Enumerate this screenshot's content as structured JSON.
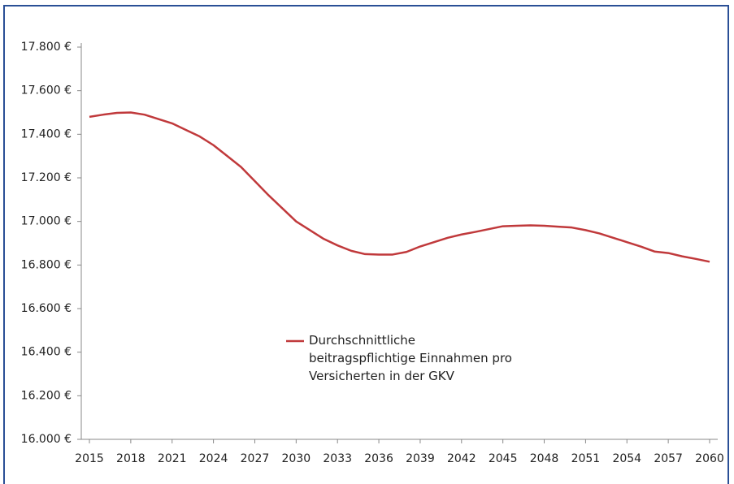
{
  "chart_data": {
    "type": "line",
    "x": [
      2015,
      2016,
      2017,
      2018,
      2019,
      2020,
      2021,
      2022,
      2023,
      2024,
      2025,
      2026,
      2027,
      2028,
      2029,
      2030,
      2031,
      2032,
      2033,
      2034,
      2035,
      2036,
      2037,
      2038,
      2039,
      2040,
      2041,
      2042,
      2043,
      2044,
      2045,
      2046,
      2047,
      2048,
      2049,
      2050,
      2051,
      2052,
      2053,
      2054,
      2055,
      2056,
      2057,
      2058,
      2059,
      2060
    ],
    "series": [
      {
        "name": "Durchschnittliche beitragspflichtige Einnahmen pro Versicherten in der GKV",
        "color": "#c0393b",
        "values": [
          17480,
          17490,
          17498,
          17500,
          17490,
          17470,
          17450,
          17420,
          17390,
          17350,
          17300,
          17250,
          17185,
          17120,
          17060,
          17000,
          16960,
          16920,
          16890,
          16865,
          16850,
          16848,
          16848,
          16860,
          16885,
          16905,
          16925,
          16940,
          16952,
          16965,
          16978,
          16980,
          16982,
          16980,
          16976,
          16972,
          16960,
          16945,
          16925,
          16905,
          16885,
          16862,
          16855,
          16840,
          16828,
          16815
        ]
      }
    ],
    "xlim": [
      2015,
      2060
    ],
    "xticks": [
      2015,
      2018,
      2021,
      2024,
      2027,
      2030,
      2033,
      2036,
      2039,
      2042,
      2045,
      2048,
      2051,
      2054,
      2057,
      2060
    ],
    "ylim": [
      16000,
      17800
    ],
    "yticks": [
      {
        "value": 16000,
        "label": "16.000 €"
      },
      {
        "value": 16200,
        "label": "16.200 €"
      },
      {
        "value": 16400,
        "label": "16.400 €"
      },
      {
        "value": 16600,
        "label": "16.600 €"
      },
      {
        "value": 16800,
        "label": "16.800 €"
      },
      {
        "value": 17000,
        "label": "17.000 €"
      },
      {
        "value": 17200,
        "label": "17.200 €"
      },
      {
        "value": 17400,
        "label": "17.400 €"
      },
      {
        "value": 17600,
        "label": "17.600 €"
      },
      {
        "value": 17800,
        "label": "17.800 €"
      }
    ],
    "grid": false
  }
}
